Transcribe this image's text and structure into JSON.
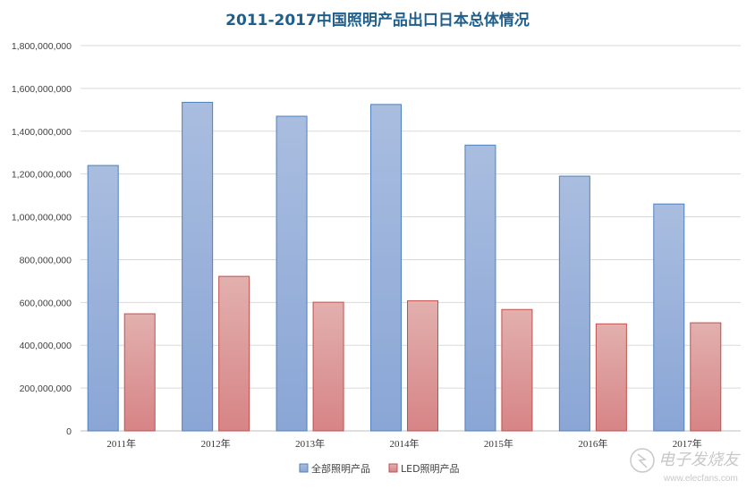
{
  "chart_data": {
    "type": "bar",
    "title": "2011-2017中国照明产品出口日本总体情况",
    "categories": [
      "2011年",
      "2012年",
      "2013年",
      "2014年",
      "2015年",
      "2016年",
      "2017年"
    ],
    "series": [
      {
        "name": "全部照明产品",
        "color": "#94aed8",
        "values": [
          1240000000,
          1535000000,
          1470000000,
          1525000000,
          1335000000,
          1190000000,
          1060000000
        ]
      },
      {
        "name": "LED照明产品",
        "color": "#e0a4a4",
        "values": [
          547000000,
          722000000,
          601000000,
          608000000,
          567000000,
          500000000,
          505000000
        ]
      }
    ],
    "y_ticks": [
      "0",
      "200,000,000",
      "400,000,000",
      "600,000,000",
      "800,000,000",
      "1,000,000,000",
      "1,200,000,000",
      "1,400,000,000",
      "1,600,000,000",
      "1,800,000,000"
    ],
    "ylim": [
      0,
      1800000000
    ],
    "grid": true,
    "legend_position": "bottom",
    "xlabel": "",
    "ylabel": ""
  },
  "watermark": {
    "text": "电子发烧友",
    "url": "www.elecfans.com"
  }
}
